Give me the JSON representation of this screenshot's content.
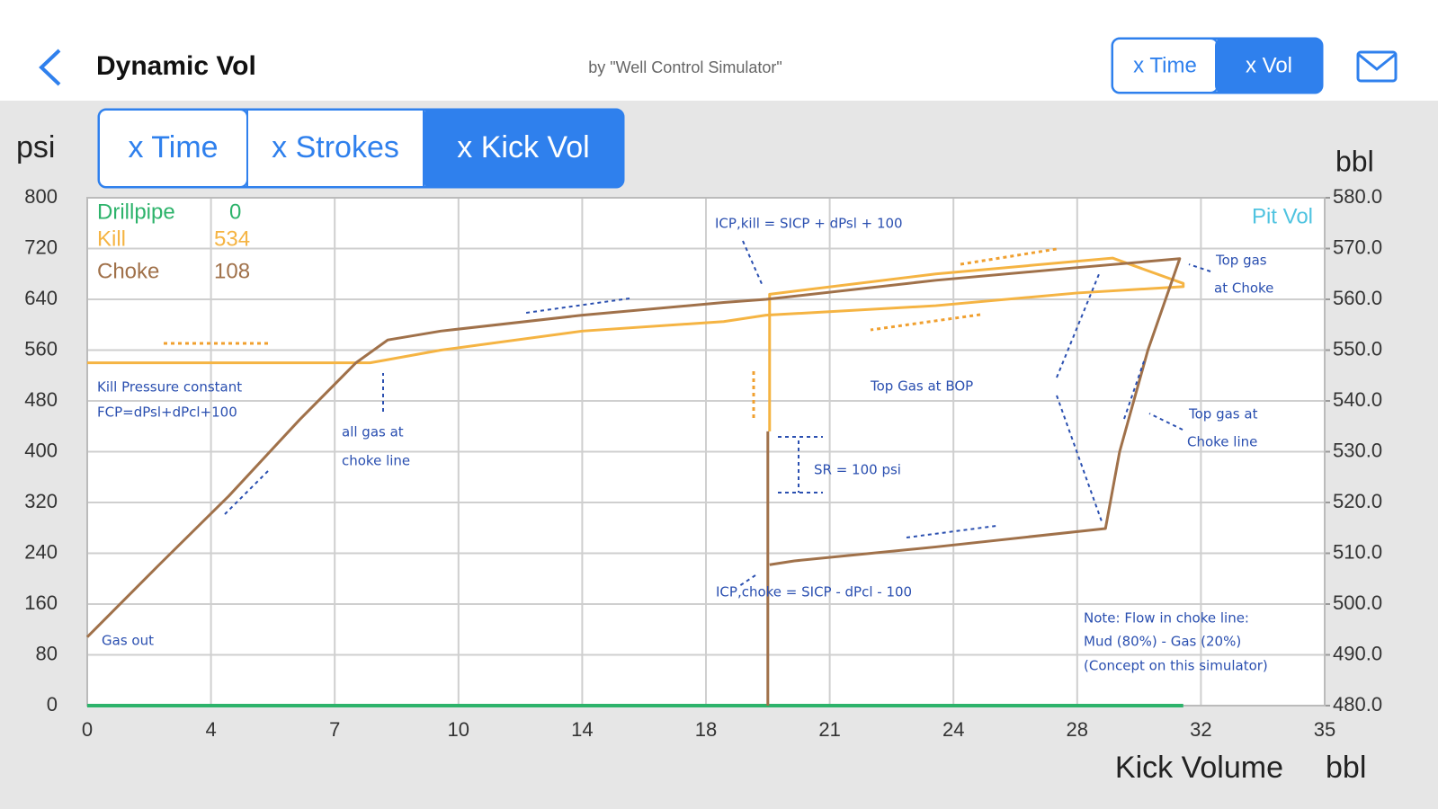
{
  "header": {
    "title": "Dynamic Vol",
    "subtitle": "by \"Well Control Simulator\"",
    "toggle": [
      {
        "label": "x Time",
        "selected": false
      },
      {
        "label": "x Vol",
        "selected": true
      }
    ]
  },
  "axis_mode": [
    {
      "label": "x Time",
      "selected": false
    },
    {
      "label": "x Strokes",
      "selected": false
    },
    {
      "label": "x Kick Vol",
      "selected": true
    }
  ],
  "chart_data": {
    "type": "line",
    "y_label": "psi",
    "y2_label": "bbl",
    "x_label": "Kick Volume",
    "x_unit": "bbl",
    "xlim": [
      0,
      35
    ],
    "xticks": [
      0,
      {
        "value": 3.5,
        "label": "4"
      },
      7,
      {
        "value": 10.5,
        "label": "10"
      },
      14,
      {
        "value": 17.5,
        "label": "18"
      },
      21,
      {
        "value": 24.5,
        "label": "24"
      },
      28,
      {
        "value": 31.5,
        "label": "32"
      },
      35
    ],
    "ylim": [
      0,
      800
    ],
    "yticks": [
      0,
      80,
      160,
      240,
      320,
      400,
      480,
      560,
      640,
      720,
      800
    ],
    "y2lim": [
      480,
      580
    ],
    "y2ticks": [
      {
        "value": 480,
        "label": "480.0"
      },
      {
        "value": 490,
        "label": "490.0"
      },
      {
        "value": 500,
        "label": "500.0"
      },
      {
        "value": 510,
        "label": "510.0"
      },
      {
        "value": 520,
        "label": "520.0"
      },
      {
        "value": 530,
        "label": "530.0"
      },
      {
        "value": 540,
        "label": "540.0"
      },
      {
        "value": 550,
        "label": "550.0"
      },
      {
        "value": 560,
        "label": "560.0"
      },
      {
        "value": 570,
        "label": "570.0"
      },
      {
        "value": 580,
        "label": "580.0"
      }
    ],
    "grid": true,
    "series": [
      {
        "name": "Drillpipe",
        "color": "#2db36b",
        "current": 0,
        "x": [
          0,
          31
        ],
        "values": [
          0,
          0
        ]
      },
      {
        "name": "Kill",
        "color": "#f5b443",
        "current": 534,
        "x": [
          0,
          4,
          8,
          8.5,
          10,
          14,
          18,
          19.2,
          24,
          28,
          31,
          31,
          29,
          24,
          19.3,
          19.3
        ],
        "values": [
          540,
          540,
          540,
          545,
          560,
          590,
          605,
          615,
          630,
          650,
          660,
          665,
          705,
          680,
          648,
          432
        ]
      },
      {
        "name": "Choke",
        "color": "#a0714a",
        "current": 108,
        "x": [
          0,
          2,
          4,
          6,
          7.6,
          8.5,
          10,
          14,
          18,
          19.2,
          24,
          28,
          30.9,
          30,
          29.2,
          28.8,
          24,
          20,
          19.3,
          19.3,
          19.25,
          19.25
        ],
        "values": [
          108,
          220,
          330,
          450,
          540,
          576,
          590,
          615,
          635,
          640,
          670,
          690,
          704,
          560,
          400,
          279,
          250,
          228,
          222,
          null,
          432,
          0
        ]
      },
      {
        "name": "Pit Vol",
        "color": "#4fc3e0",
        "axis": "y2",
        "x": [],
        "values": []
      }
    ],
    "annotations": [
      "ICP,kill = SICP + dPsl + 100",
      "Top gas",
      "at Choke",
      "Kill Pressure constant",
      "FCP=dPsl+dPcl+100",
      "all gas at",
      "choke line",
      "Top Gas at BOP",
      "SR = 100 psi",
      "Top gas at",
      "Choke line",
      "ICP,choke = SICP - dPcl - 100",
      "Gas out",
      "Note: Flow in choke line:",
      "Mud (80%) - Gas (20%)",
      "(Concept on this simulator)"
    ]
  }
}
